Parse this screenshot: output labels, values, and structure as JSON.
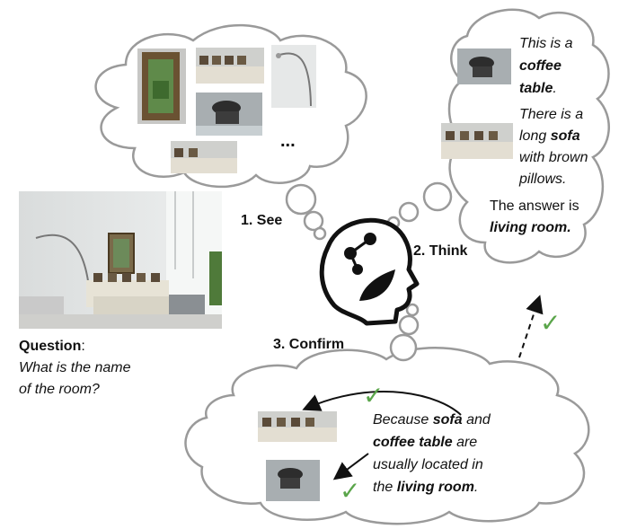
{
  "steps": {
    "see": "1. See",
    "think": "2. Think",
    "confirm": "3. Confirm"
  },
  "question": {
    "label": "Question",
    "colon": ":",
    "line1": "What is the name",
    "line2": "of the room?"
  },
  "see_cloud": {
    "ellipsis": "..."
  },
  "think_cloud": {
    "t1_a": "This is a",
    "t1_b": "coffee",
    "t1_c": "table",
    "t1_d": ".",
    "t2_a": "There is a",
    "t2_b": "long ",
    "t2_c": "sofa",
    "t2_d": "with brown",
    "t2_e": "pillows.",
    "t3_a": "The answer is",
    "t3_b": "living room."
  },
  "confirm_cloud": {
    "l1_a": "Because ",
    "l1_b": "sofa",
    "l1_c": " and",
    "l2_a": "coffee table",
    "l2_b": " are",
    "l3": "usually located in",
    "l4_a": "the ",
    "l4_b": "living room",
    "l4_c": "."
  },
  "marks": {
    "check": "✓"
  },
  "colors": {
    "cloud_stroke": "#9a9a9a",
    "check": "#5aa54a"
  }
}
